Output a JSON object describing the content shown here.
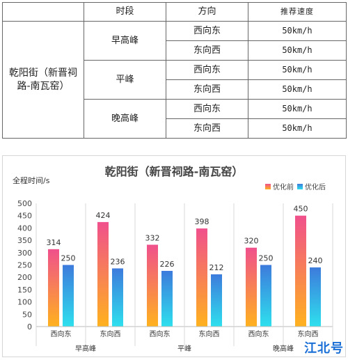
{
  "table": {
    "headers": {
      "period": "时段",
      "direction": "方向",
      "speed": "推荐速度"
    },
    "road": "乾阳街（新晋祠路-南瓦窑）",
    "rows": [
      {
        "period": "早高峰",
        "dirs": [
          {
            "direction": "西向东",
            "speed": "50km/h"
          },
          {
            "direction": "东向西",
            "speed": "50km/h"
          }
        ]
      },
      {
        "period": "平峰",
        "dirs": [
          {
            "direction": "西向东",
            "speed": "50km/h"
          },
          {
            "direction": "东向西",
            "speed": "50km/h"
          }
        ]
      },
      {
        "period": "晚高峰",
        "dirs": [
          {
            "direction": "西向东",
            "speed": "50km/h"
          },
          {
            "direction": "东向西",
            "speed": "50km/h"
          }
        ]
      }
    ]
  },
  "chart_data": {
    "type": "bar",
    "title": "乾阳街（新晋祠路-南瓦窑）",
    "ylabel": "全程时间/s",
    "xlabel": "",
    "ylim": [
      0,
      500
    ],
    "yticks": [
      0,
      50,
      100,
      150,
      200,
      250,
      300,
      350,
      400,
      450,
      500
    ],
    "grid": false,
    "legend_position": "top-right",
    "categories": [
      "西向东",
      "东向西",
      "西向东",
      "东向西",
      "西向东",
      "东向西"
    ],
    "groups": [
      {
        "label": "早高峰",
        "span": 2
      },
      {
        "label": "平峰",
        "span": 2
      },
      {
        "label": "晚高峰",
        "span": 2
      }
    ],
    "series": [
      {
        "name": "优化前",
        "values": [
          314,
          424,
          332,
          398,
          320,
          450
        ],
        "color_top": "#f0508c",
        "color_bottom": "#ffb21e"
      },
      {
        "name": "优化后",
        "values": [
          250,
          236,
          226,
          212,
          250,
          240
        ],
        "color_top": "#3d7bdc",
        "color_bottom": "#2ee0ee"
      }
    ]
  },
  "watermark": "江北号"
}
